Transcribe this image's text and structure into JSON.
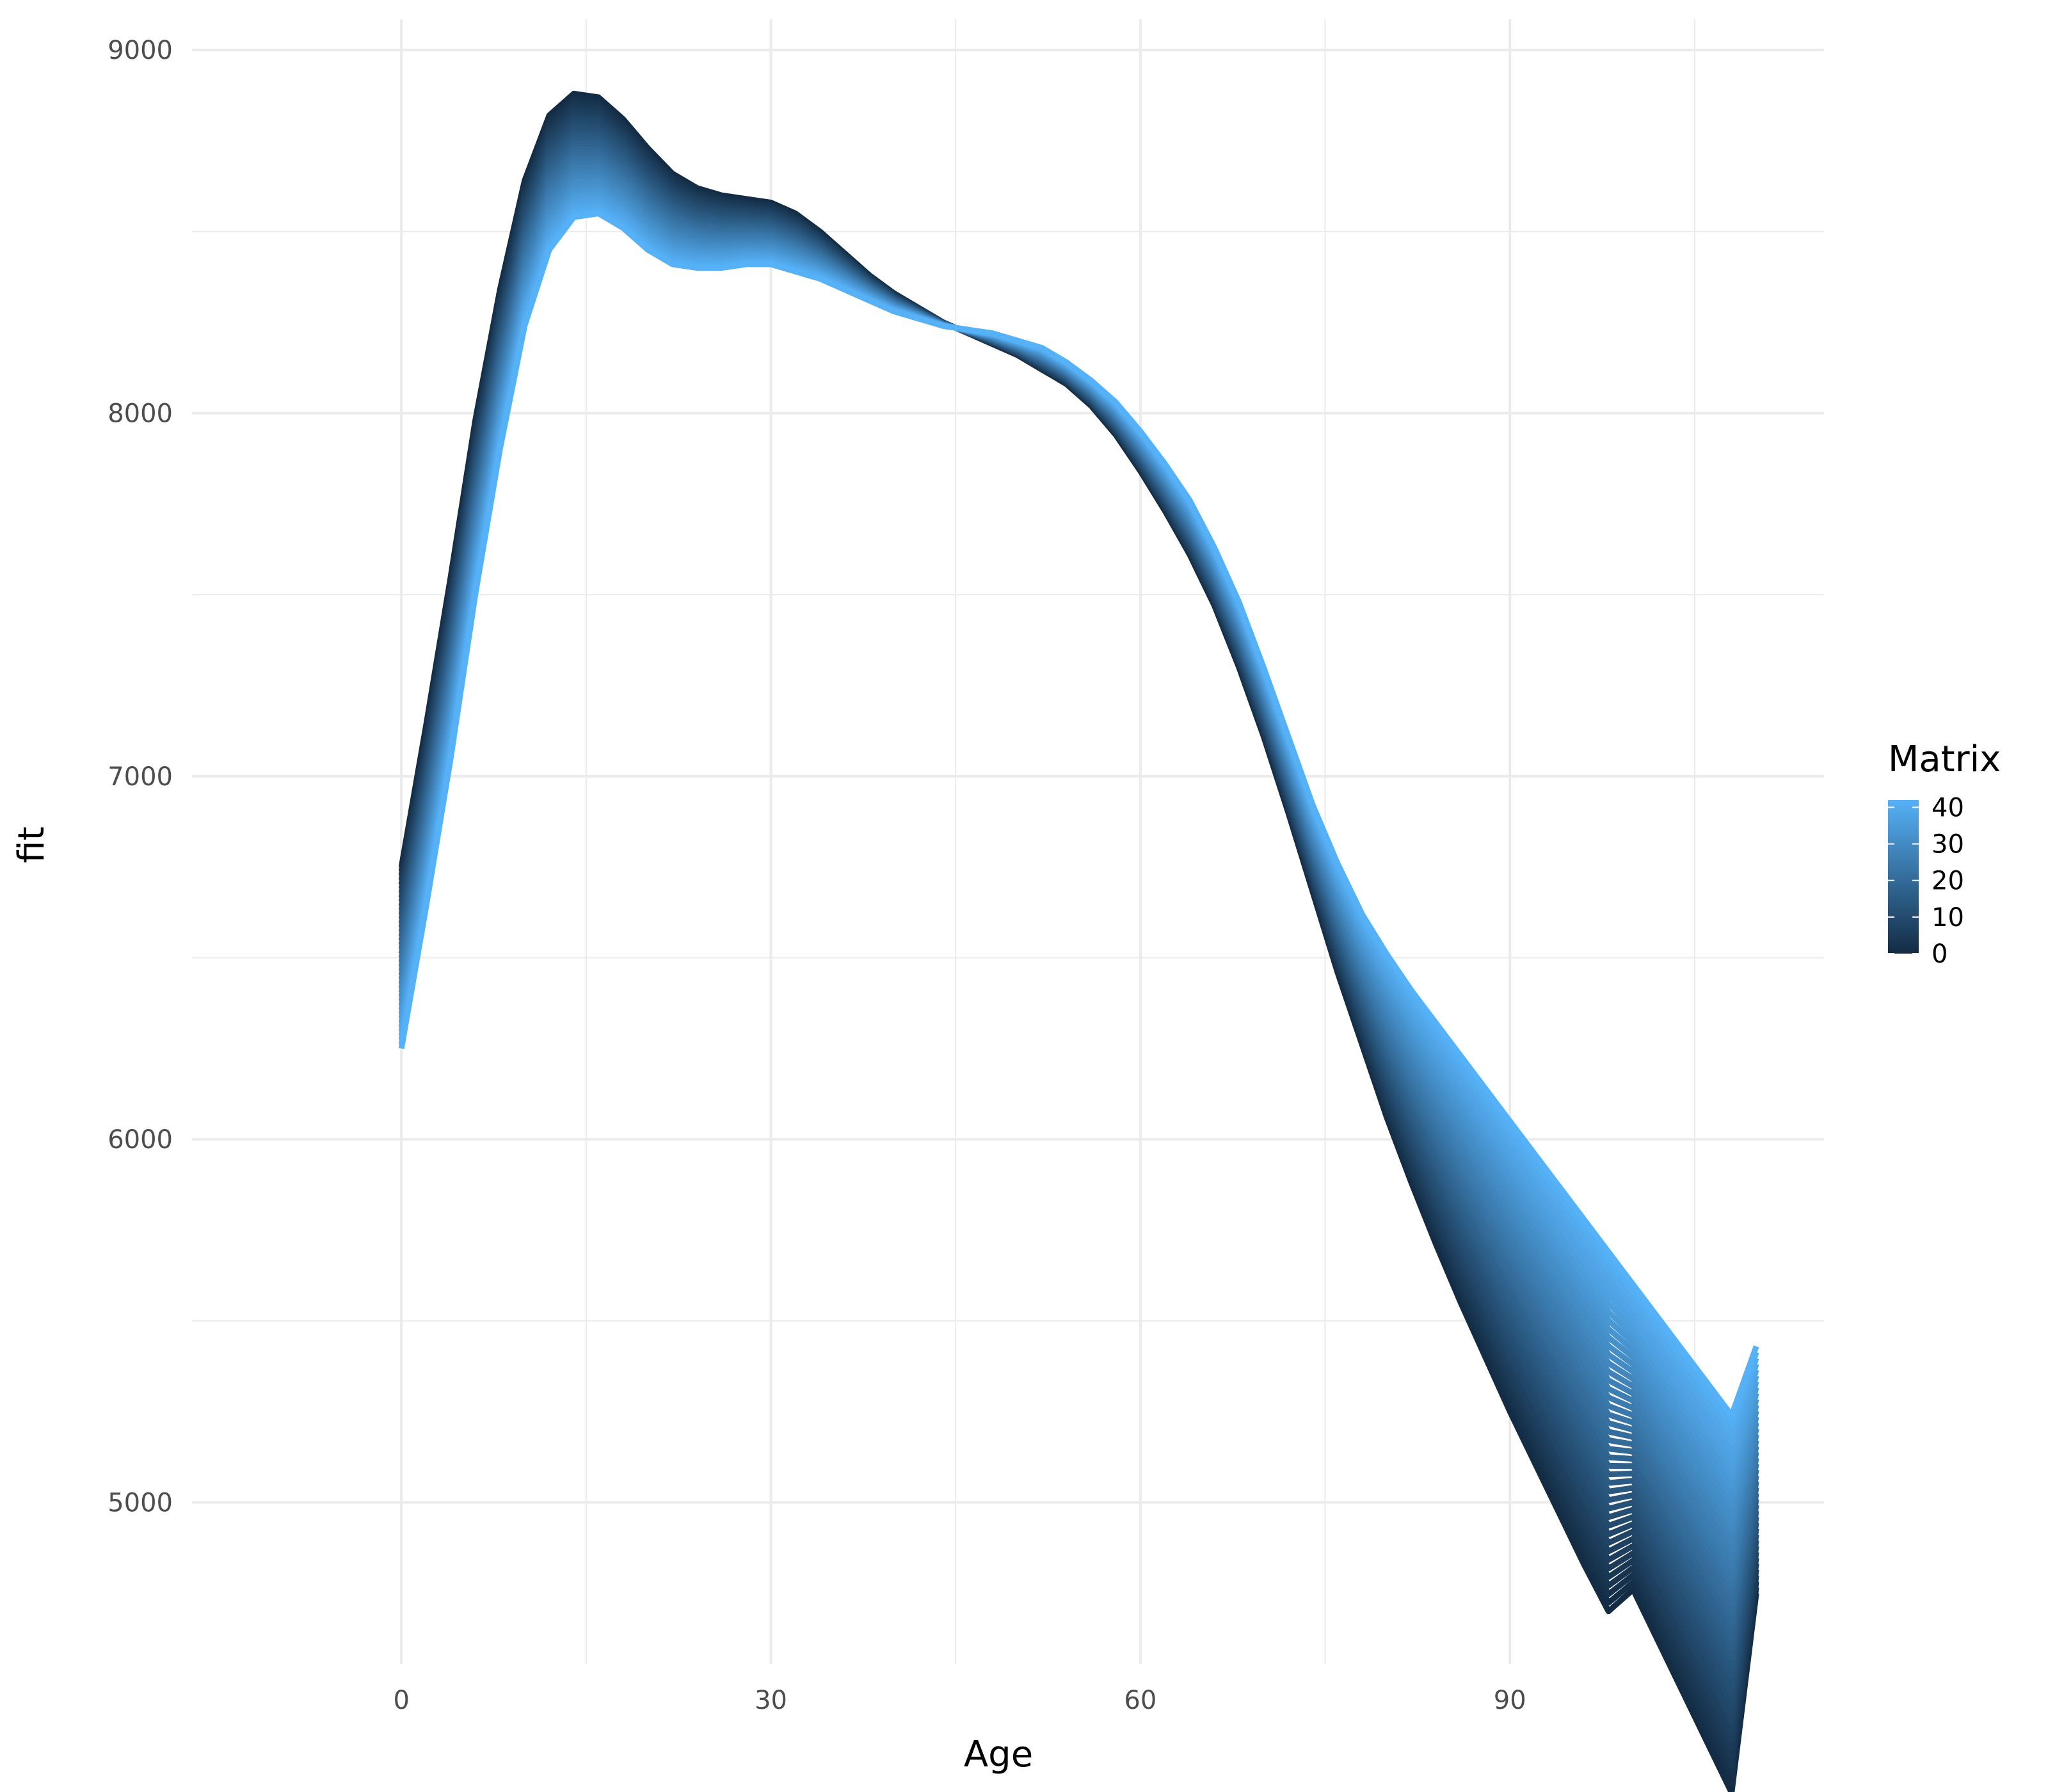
{
  "chart_data": {
    "type": "line",
    "title": "",
    "xlabel": "Age",
    "ylabel": "fit",
    "xlim": [
      -17,
      115.5
    ],
    "ylim": [
      4555,
      9085
    ],
    "x_ticks": [
      0,
      30,
      60,
      90
    ],
    "y_ticks": [
      5000,
      6000,
      7000,
      8000,
      9000
    ],
    "x_minor": [
      15,
      45,
      75,
      105
    ],
    "y_minor": [
      5500,
      6500,
      7500,
      8500
    ],
    "grid": true,
    "legend": {
      "title": "Matrix",
      "position": "right",
      "type": "colorbar",
      "range": [
        0,
        42
      ],
      "ticks": [
        0,
        10,
        20,
        30,
        40
      ],
      "color_low": "#132B43",
      "color_high": "#56B1F7"
    },
    "colors": {
      "grid": "#ebebeb",
      "low": "#132B43",
      "high": "#56B1F7"
    },
    "matrix_range": [
      0,
      42
    ],
    "series": [
      {
        "matrix": 0,
        "x": [
          0,
          2,
          4,
          6,
          8,
          10,
          12,
          14,
          16,
          18,
          20,
          22,
          24,
          26,
          28,
          30,
          32,
          34,
          36,
          38,
          40,
          42,
          44,
          46,
          48,
          50,
          52,
          54,
          56,
          58,
          60,
          62,
          64,
          66,
          68,
          70,
          72,
          74,
          76,
          78,
          80,
          82,
          84,
          86,
          88,
          90,
          92,
          94,
          96,
          98,
          100,
          102,
          104,
          106,
          108,
          110
        ],
        "y": [
          6750,
          7140,
          7550,
          7980,
          8340,
          8640,
          8820,
          8880,
          8870,
          8810,
          8730,
          8660,
          8620,
          8600,
          8590,
          8580,
          8550,
          8500,
          8440,
          8380,
          8330,
          8290,
          8250,
          8220,
          8190,
          8160,
          8120,
          8080,
          8020,
          7940,
          7840,
          7730,
          7610,
          7470,
          7300,
          7110,
          6900,
          6680,
          6460,
          6260,
          6060,
          5880,
          5710,
          5550,
          5400,
          5250,
          5110,
          4970,
          4830,
          4700,
          4760,
          4620,
          4480,
          4340,
          4200,
          4750
        ]
      },
      {
        "matrix": 42,
        "x": [
          0,
          2,
          4,
          6,
          8,
          10,
          12,
          14,
          16,
          18,
          20,
          22,
          24,
          26,
          28,
          30,
          32,
          34,
          36,
          38,
          40,
          42,
          44,
          46,
          48,
          50,
          52,
          54,
          56,
          58,
          60,
          62,
          64,
          66,
          68,
          70,
          72,
          74,
          76,
          78,
          80,
          82,
          84,
          86,
          88,
          90,
          92,
          94,
          96,
          98,
          100,
          102,
          104,
          106,
          108,
          110
        ],
        "y": [
          6250,
          6640,
          7050,
          7500,
          7900,
          8240,
          8450,
          8540,
          8550,
          8510,
          8450,
          8410,
          8400,
          8400,
          8410,
          8410,
          8390,
          8370,
          8340,
          8310,
          8280,
          8260,
          8240,
          8230,
          8220,
          8200,
          8180,
          8140,
          8090,
          8030,
          7950,
          7860,
          7760,
          7630,
          7480,
          7300,
          7110,
          6920,
          6760,
          6620,
          6510,
          6410,
          6320,
          6230,
          6140,
          6050,
          5960,
          5870,
          5780,
          5690,
          5600,
          5510,
          5420,
          5330,
          5240,
          5430
        ]
      }
    ]
  }
}
